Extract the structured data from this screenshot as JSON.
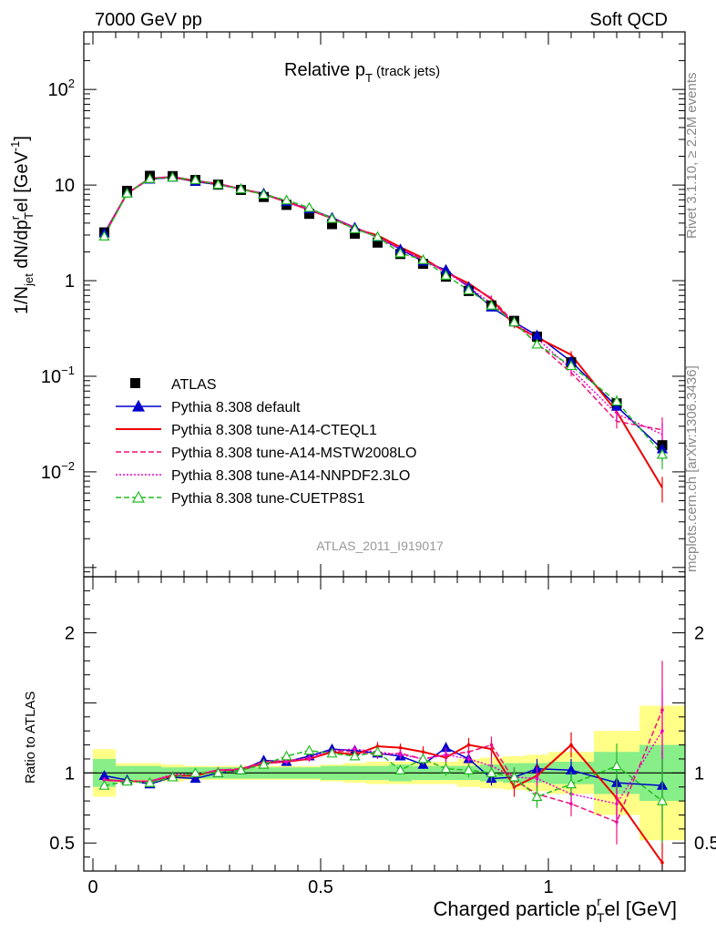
{
  "header": {
    "left": "7000 GeV pp",
    "right": "Soft QCD"
  },
  "title": {
    "main": "Relative p",
    "sub": "T",
    "suffix": " (track jets)"
  },
  "ylabel_main": {
    "prefix": "1/N",
    "sub1": "jet",
    "mid": " dN/dp",
    "sup2": "r",
    "sub2": "T",
    "suffix": "el [GeV",
    "sup3": "-1",
    "end": "]"
  },
  "ylabel_ratio": "Ratio to ATLAS",
  "xlabel": {
    "prefix": "Charged particle p",
    "sup": "r",
    "sub": "T",
    "suffix": "el [GeV]"
  },
  "side_right_top": "Rivet 3.1.10, ≥ 2.2M events",
  "side_right_bottom": "mcplots.cern.ch [arXiv:1306.3436]",
  "watermark": "ATLAS_2011_I919017",
  "chart_data": {
    "type": "line",
    "xlim": [
      -0.02,
      1.3
    ],
    "main_ylim": [
      0.0008,
      400
    ],
    "main_scale": "log",
    "ratio_ylim": [
      0.3,
      2.4
    ],
    "x_ticks": [
      {
        "v": 0,
        "label": "0"
      },
      {
        "v": 0.5,
        "label": "0.5"
      },
      {
        "v": 1,
        "label": "1"
      }
    ],
    "main_y_ticks": [
      {
        "v": 0.01,
        "base": "10",
        "exp": "−2"
      },
      {
        "v": 0.1,
        "base": "10",
        "exp": "−1"
      },
      {
        "v": 1,
        "base": "1",
        "exp": ""
      },
      {
        "v": 10,
        "base": "10",
        "exp": ""
      },
      {
        "v": 100,
        "base": "10",
        "exp": "2"
      }
    ],
    "ratio_y_ticks": [
      {
        "v": 0.5,
        "label": "0.5"
      },
      {
        "v": 1,
        "label": "1"
      },
      {
        "v": 2,
        "label": "2"
      }
    ],
    "x": [
      0.025,
      0.075,
      0.125,
      0.175,
      0.225,
      0.275,
      0.325,
      0.375,
      0.425,
      0.475,
      0.525,
      0.575,
      0.625,
      0.675,
      0.725,
      0.775,
      0.825,
      0.875,
      0.925,
      0.975,
      1.05,
      1.15,
      1.25
    ],
    "bin_edges": [
      0,
      0.05,
      0.1,
      0.15,
      0.2,
      0.25,
      0.3,
      0.35,
      0.4,
      0.45,
      0.5,
      0.55,
      0.6,
      0.65,
      0.7,
      0.75,
      0.8,
      0.85,
      0.9,
      0.95,
      1.0,
      1.1,
      1.2,
      1.3
    ],
    "data_values": [
      3.2,
      8.7,
      12.5,
      12.4,
      11.3,
      10.1,
      8.9,
      7.5,
      6.2,
      5.0,
      3.9,
      3.1,
      2.5,
      1.9,
      1.5,
      1.1,
      0.78,
      0.55,
      0.38,
      0.26,
      0.14,
      0.052,
      0.019
    ],
    "band_inner": [
      0.1,
      0.05,
      0.05,
      0.04,
      0.04,
      0.04,
      0.04,
      0.04,
      0.04,
      0.04,
      0.05,
      0.05,
      0.05,
      0.06,
      0.05,
      0.05,
      0.05,
      0.06,
      0.07,
      0.07,
      0.08,
      0.15,
      0.2
    ],
    "band_outer": [
      0.17,
      0.07,
      0.07,
      0.06,
      0.05,
      0.05,
      0.05,
      0.05,
      0.05,
      0.05,
      0.06,
      0.07,
      0.08,
      0.08,
      0.08,
      0.08,
      0.1,
      0.11,
      0.12,
      0.13,
      0.15,
      0.3,
      0.48
    ],
    "series": [
      {
        "name": "Pythia 8.308 default",
        "color": "#0000cc",
        "dash": "",
        "marker": "triangle-filled",
        "ratio": [
          0.98,
          0.95,
          0.92,
          0.97,
          0.96,
          1.0,
          1.02,
          1.09,
          1.08,
          1.12,
          1.17,
          1.16,
          1.14,
          1.12,
          1.06,
          1.18,
          1.1,
          0.96,
          0.97,
          1.03,
          1.02,
          0.93,
          0.91
        ],
        "err": [
          0.02,
          0.02,
          0.02,
          0.02,
          0.02,
          0.02,
          0.02,
          0.02,
          0.02,
          0.02,
          0.02,
          0.02,
          0.03,
          0.03,
          0.03,
          0.04,
          0.04,
          0.05,
          0.06,
          0.07,
          0.08,
          0.14,
          0.25
        ]
      },
      {
        "name": "Pythia 8.308 tune-A14-CTEQL1",
        "color": "#ee0000",
        "dash": "",
        "marker": "none",
        "ratio": [
          0.95,
          0.94,
          0.94,
          0.98,
          0.98,
          1.02,
          1.02,
          1.07,
          1.08,
          1.1,
          1.15,
          1.13,
          1.19,
          1.18,
          1.15,
          1.11,
          1.2,
          1.17,
          0.9,
          0.98,
          1.2,
          0.82,
          0.36
        ],
        "err": [
          0.02,
          0.02,
          0.02,
          0.02,
          0.02,
          0.02,
          0.02,
          0.02,
          0.02,
          0.02,
          0.02,
          0.03,
          0.03,
          0.03,
          0.04,
          0.05,
          0.05,
          0.06,
          0.07,
          0.08,
          0.09,
          0.16,
          0.3
        ]
      },
      {
        "name": "Pythia 8.308 tune-A14-MSTW2008LO",
        "color": "#ee1177",
        "dash": "6,3",
        "marker": "none",
        "ratio": [
          0.95,
          0.94,
          0.94,
          0.98,
          0.99,
          1.02,
          1.03,
          1.08,
          1.09,
          1.1,
          1.16,
          1.15,
          1.13,
          1.14,
          1.1,
          1.13,
          1.15,
          1.2,
          0.95,
          0.85,
          0.78,
          0.65,
          1.45
        ],
        "err": [
          0.02,
          0.02,
          0.02,
          0.02,
          0.02,
          0.02,
          0.02,
          0.02,
          0.02,
          0.02,
          0.02,
          0.03,
          0.03,
          0.03,
          0.04,
          0.05,
          0.05,
          0.06,
          0.07,
          0.08,
          0.09,
          0.16,
          0.35
        ]
      },
      {
        "name": "Pythia 8.308 tune-A14-NNPDF2.3LO",
        "color": "#ee00cc",
        "dash": "2,2",
        "marker": "none",
        "ratio": [
          0.95,
          0.94,
          0.94,
          0.99,
          0.99,
          1.02,
          1.02,
          1.07,
          1.08,
          1.11,
          1.16,
          1.17,
          1.15,
          1.13,
          1.1,
          1.13,
          1.1,
          1.05,
          0.97,
          0.96,
          0.85,
          0.78,
          1.3
        ],
        "err": [
          0.02,
          0.02,
          0.02,
          0.02,
          0.02,
          0.02,
          0.02,
          0.02,
          0.02,
          0.02,
          0.02,
          0.03,
          0.03,
          0.03,
          0.04,
          0.05,
          0.05,
          0.06,
          0.07,
          0.08,
          0.09,
          0.16,
          0.3
        ]
      },
      {
        "name": "Pythia 8.308 tune-CUETP8S1",
        "color": "#22bb22",
        "dash": "6,3",
        "marker": "triangle-open",
        "ratio": [
          0.91,
          0.94,
          0.93,
          0.97,
          1.0,
          1.0,
          1.02,
          1.06,
          1.12,
          1.16,
          1.14,
          1.12,
          1.15,
          1.02,
          1.1,
          1.03,
          1.02,
          1.0,
          0.97,
          0.83,
          0.92,
          1.05,
          0.8
        ],
        "err": [
          0.02,
          0.02,
          0.02,
          0.02,
          0.02,
          0.02,
          0.02,
          0.02,
          0.02,
          0.02,
          0.02,
          0.03,
          0.03,
          0.03,
          0.04,
          0.05,
          0.05,
          0.06,
          0.07,
          0.08,
          0.09,
          0.16,
          0.3
        ]
      }
    ],
    "data_legend": "ATLAS"
  }
}
